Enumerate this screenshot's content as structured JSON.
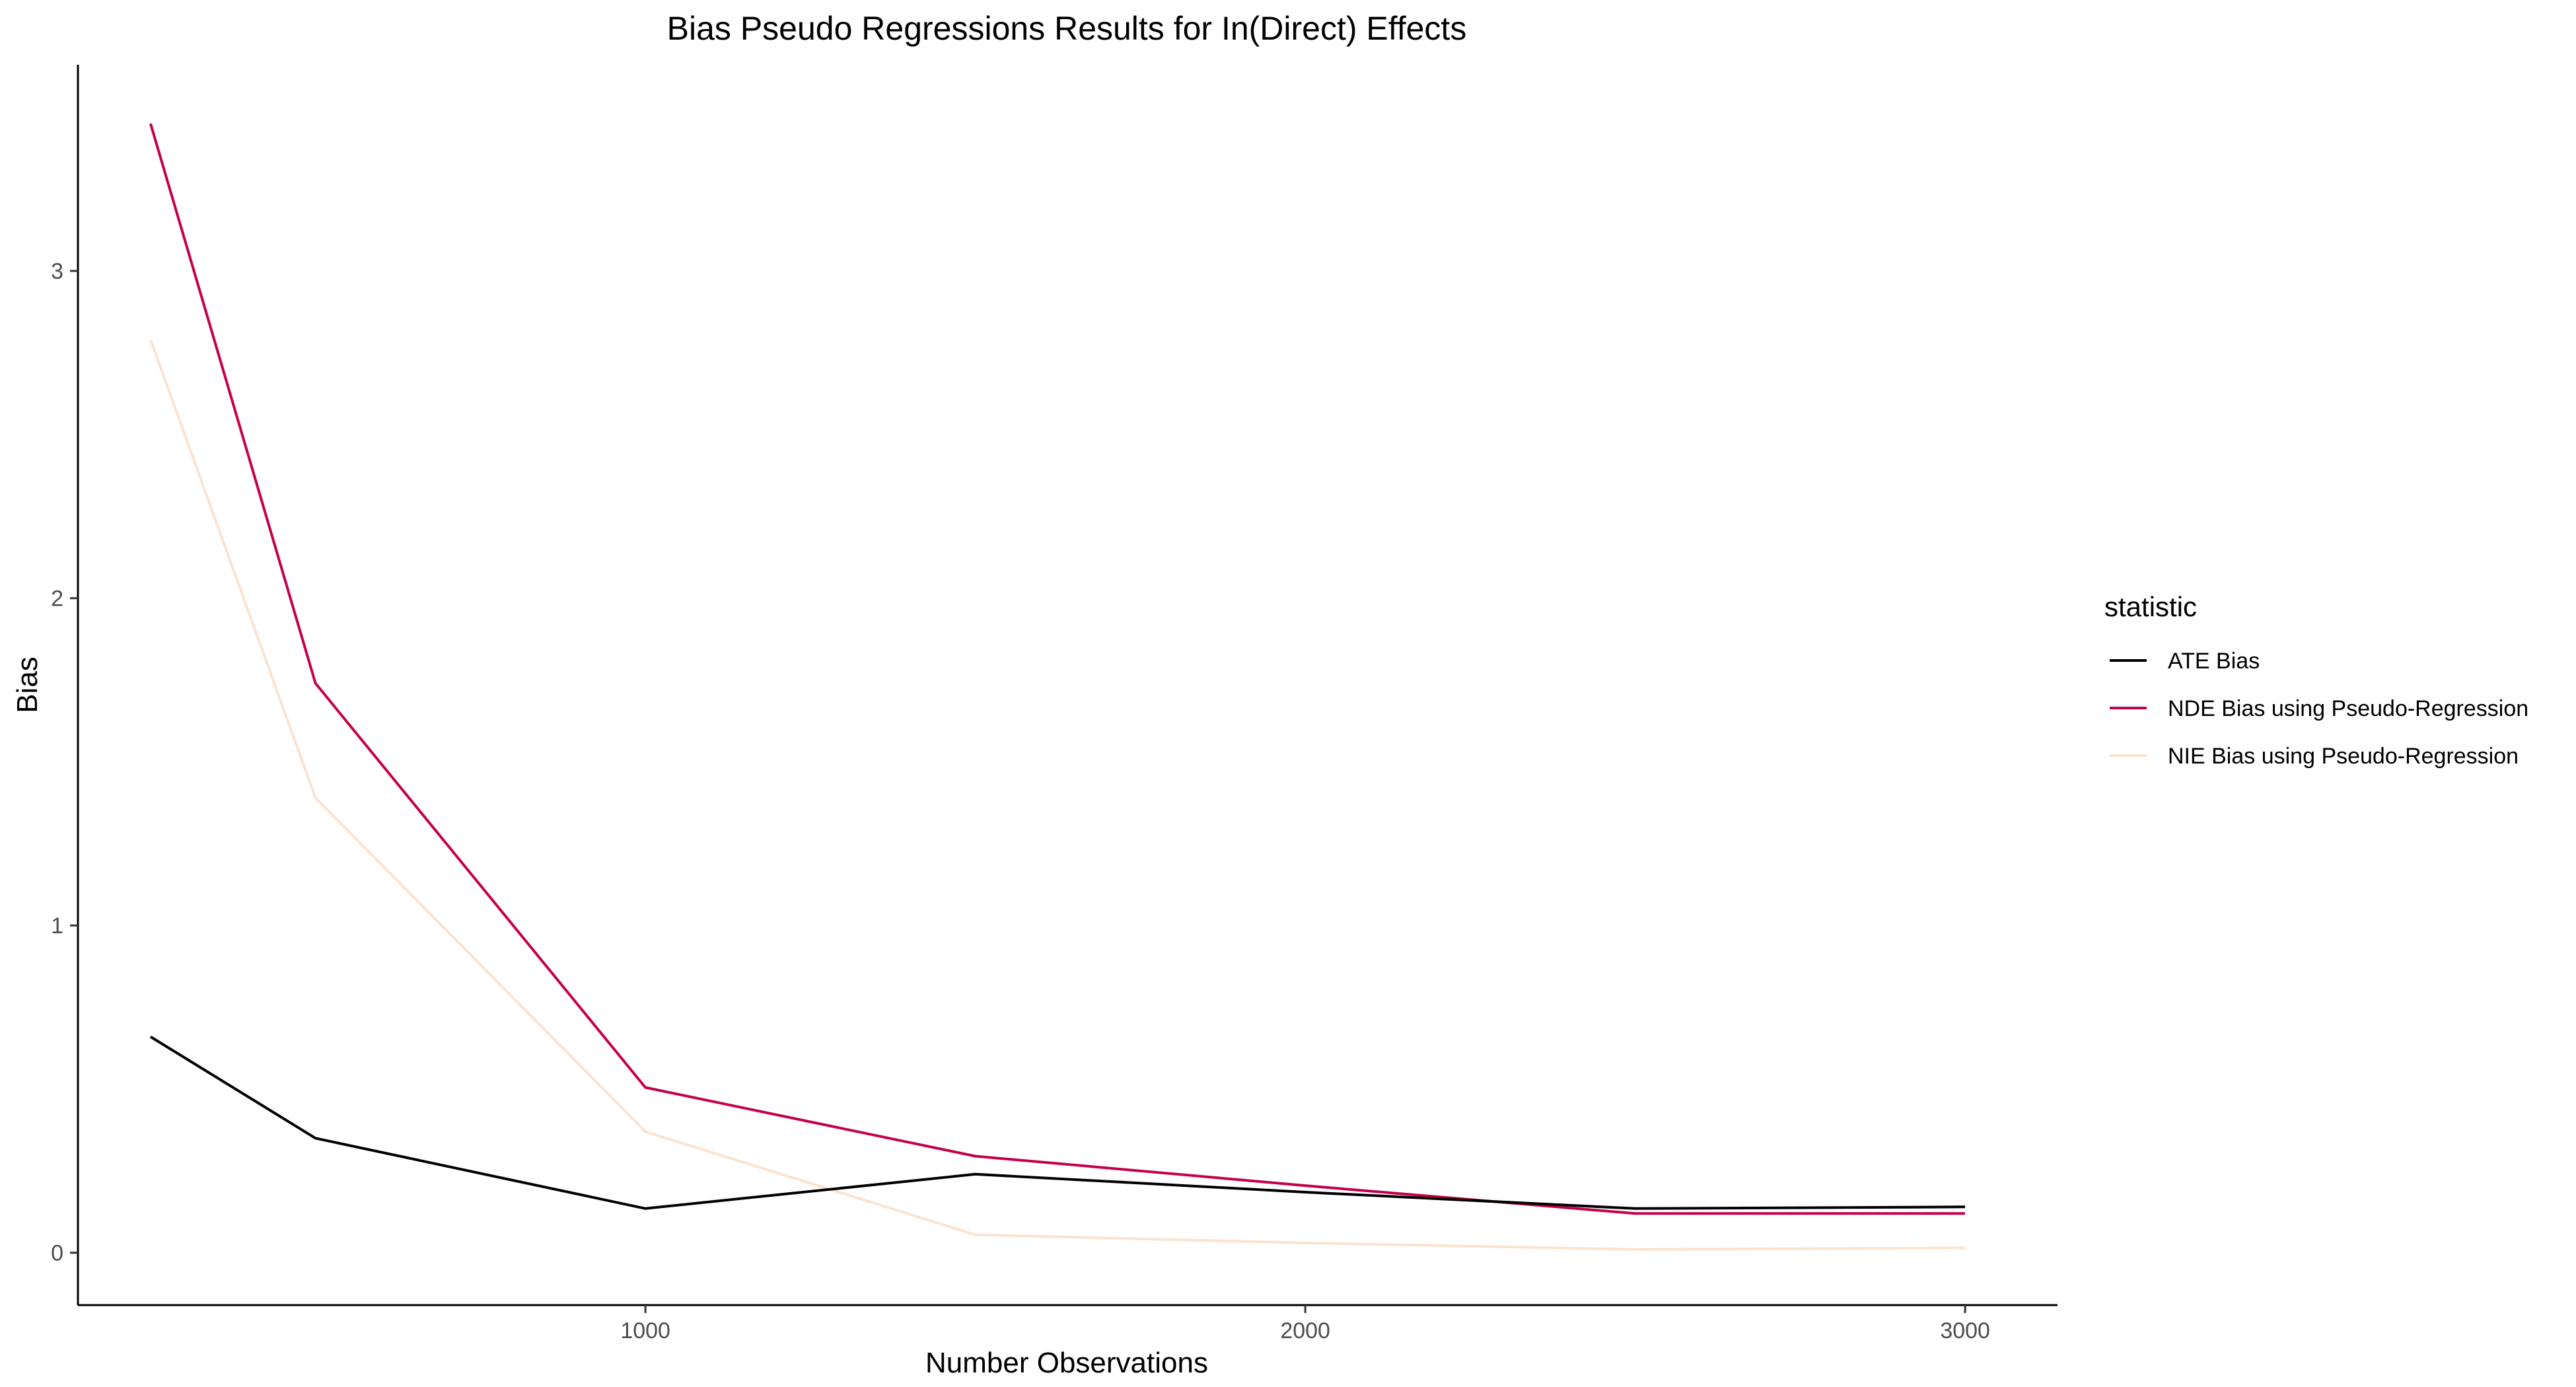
{
  "chart_data": {
    "type": "line",
    "title": "Bias Pseudo Regressions Results for In(Direct) Effects",
    "xlabel": "Number Observations",
    "ylabel": "Bias",
    "xlim": [
      140,
      3140
    ],
    "ylim": [
      -0.16,
      3.63
    ],
    "x_ticks": [
      1000,
      2000,
      3000
    ],
    "y_ticks": [
      0,
      1,
      2,
      3
    ],
    "grid": false,
    "legend": {
      "title": "statistic",
      "placement": "right"
    },
    "x": [
      250,
      500,
      1000,
      1500,
      2000,
      2500,
      3000
    ],
    "series": [
      {
        "name": "ATE Bias",
        "color": "#000000",
        "values": [
          0.66,
          0.35,
          0.135,
          0.24,
          0.185,
          0.135,
          0.14
        ]
      },
      {
        "name": "NDE Bias using Pseudo-Regression",
        "color": "#c5004a",
        "values": [
          3.45,
          1.74,
          0.505,
          0.295,
          0.205,
          0.12,
          0.12
        ]
      },
      {
        "name": "NIE Bias using Pseudo-Regression",
        "color": "#fbe3d0",
        "values": [
          2.79,
          1.39,
          0.37,
          0.055,
          0.03,
          0.01,
          0.015
        ]
      }
    ]
  }
}
